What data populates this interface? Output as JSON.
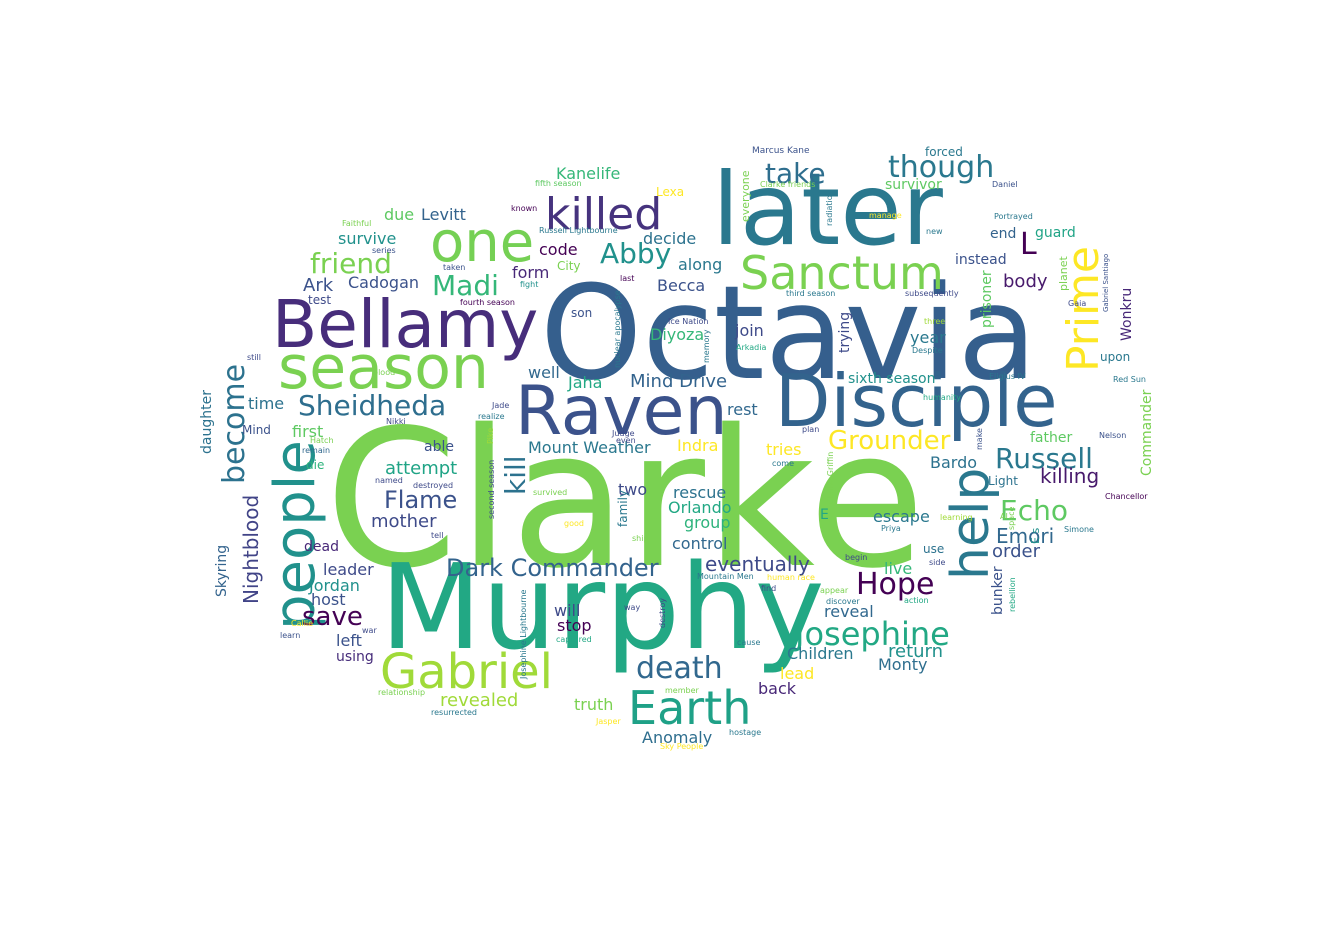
{
  "words": [
    {
      "text": "Clarke",
      "color": "#7ad151",
      "rot": 0
    },
    {
      "text": "Octavia",
      "color": "#355f8d",
      "rot": 0
    },
    {
      "text": "Murphy",
      "color": "#22a884",
      "rot": 0
    },
    {
      "text": "later",
      "color": "#2a788e",
      "rot": 0
    },
    {
      "text": "Disciple",
      "color": "#33638d",
      "rot": 0
    },
    {
      "text": "Raven",
      "color": "#3b528b",
      "rot": 0
    },
    {
      "text": "Bellamy",
      "color": "#472d7b",
      "rot": 0
    },
    {
      "text": "season",
      "color": "#7ad151",
      "rot": 0
    },
    {
      "text": "one",
      "color": "#75d054",
      "rot": 0
    },
    {
      "text": "people",
      "color": "#21918c",
      "rot": -90
    },
    {
      "text": "help",
      "color": "#2a788e",
      "rot": -90
    },
    {
      "text": "Sanctum",
      "color": "#7ad151",
      "rot": 0
    },
    {
      "text": "Gabriel",
      "color": "#a0da39",
      "rot": 0
    },
    {
      "text": "Earth",
      "color": "#1fa187",
      "rot": 0
    },
    {
      "text": "killed",
      "color": "#46337e",
      "rot": 0
    },
    {
      "text": "Prime",
      "color": "#fde725",
      "rot": -90
    },
    {
      "text": "Josephine",
      "color": "#22a884",
      "rot": 0
    },
    {
      "text": "Sheidheda",
      "color": "#2e6e8e",
      "rot": 0
    },
    {
      "text": "Russell",
      "color": "#2a788e",
      "rot": 0
    },
    {
      "text": "Grounder",
      "color": "#fde725",
      "rot": 0
    },
    {
      "text": "death",
      "color": "#31688e",
      "rot": 0
    },
    {
      "text": "Hope",
      "color": "#440154",
      "rot": 0
    },
    {
      "text": "Echo",
      "color": "#5ec962",
      "rot": 0
    },
    {
      "text": "kill",
      "color": "#2c728e",
      "rot": -90
    },
    {
      "text": "Abby",
      "color": "#21918c",
      "rot": 0
    },
    {
      "text": "Madi",
      "color": "#35b779",
      "rot": 0
    },
    {
      "text": "friend",
      "color": "#7ad151",
      "rot": 0
    },
    {
      "text": "though",
      "color": "#2a788e",
      "rot": 0
    },
    {
      "text": "take",
      "color": "#2e6e8e",
      "rot": 0
    },
    {
      "text": "become",
      "color": "#2c728e",
      "rot": -90
    },
    {
      "text": "Dark Commander",
      "color": "#33638d",
      "rot": 0
    },
    {
      "text": "Flame",
      "color": "#3b528b",
      "rot": 0
    },
    {
      "text": "save",
      "color": "#440154",
      "rot": 0
    },
    {
      "text": "L",
      "color": "#440154",
      "rot": 0
    },
    {
      "text": "Nightblood",
      "color": "#414487",
      "rot": -90
    },
    {
      "text": "eventually",
      "color": "#3e4a89",
      "rot": 0
    },
    {
      "text": "killing",
      "color": "#481a6c",
      "rot": 0
    },
    {
      "text": "Emori",
      "color": "#31688e",
      "rot": 0
    },
    {
      "text": "revealed",
      "color": "#a0da39",
      "rot": 0
    },
    {
      "text": "return",
      "color": "#21918c",
      "rot": 0
    },
    {
      "text": "Children",
      "color": "#2a788e",
      "rot": 0
    },
    {
      "text": "Mind Drive",
      "color": "#33638d",
      "rot": 0
    },
    {
      "text": "Mount Weather",
      "color": "#2a788e",
      "rot": 0
    },
    {
      "text": "Anomaly",
      "color": "#2e6e8e",
      "rot": 0
    },
    {
      "text": "body",
      "color": "#481a6c",
      "rot": 0
    },
    {
      "text": "attempt",
      "color": "#20a486",
      "rot": 0
    },
    {
      "text": "Diyoza",
      "color": "#35b779",
      "rot": 0
    },
    {
      "text": "Becca",
      "color": "#3b528b",
      "rot": 0
    },
    {
      "text": "Ark",
      "color": "#3b528b",
      "rot": 0
    },
    {
      "text": "mother",
      "color": "#3e4a89",
      "rot": 0
    },
    {
      "text": "order",
      "color": "#3b528b",
      "rot": 0
    },
    {
      "text": "Jordan",
      "color": "#21918c",
      "rot": 0
    },
    {
      "text": "group",
      "color": "#2eb37c",
      "rot": 0
    },
    {
      "text": "rescue",
      "color": "#2c728e",
      "rot": 0
    },
    {
      "text": "Indra",
      "color": "#fde725",
      "rot": 0
    },
    {
      "text": "Bardo",
      "color": "#2c728e",
      "rot": 0
    },
    {
      "text": "Kanelife",
      "color": "#35b779",
      "rot": 0
    },
    {
      "text": "Levitt",
      "color": "#33638d",
      "rot": 0
    },
    {
      "text": "survive",
      "color": "#21918c",
      "rot": 0
    },
    {
      "text": "due",
      "color": "#5ec962",
      "rot": 0
    },
    {
      "text": "decide",
      "color": "#2c728e",
      "rot": 0
    },
    {
      "text": "along",
      "color": "#2a788e",
      "rot": 0
    },
    {
      "text": "form",
      "color": "#482878",
      "rot": 0
    },
    {
      "text": "code",
      "color": "#440154",
      "rot": 0
    },
    {
      "text": "Cadogan",
      "color": "#3b528b",
      "rot": 0
    },
    {
      "text": "Jaha",
      "color": "#22a884",
      "rot": 0
    },
    {
      "text": "well",
      "color": "#31688e",
      "rot": 0
    },
    {
      "text": "first",
      "color": "#5ec962",
      "rot": 0
    },
    {
      "text": "time",
      "color": "#2c728e",
      "rot": 0
    },
    {
      "text": "rest",
      "color": "#31688e",
      "rot": 0
    },
    {
      "text": "two",
      "color": "#3e4a89",
      "rot": 0
    },
    {
      "text": "Orlando",
      "color": "#22a884",
      "rot": 0
    },
    {
      "text": "control",
      "color": "#31688e",
      "rot": 0
    },
    {
      "text": "leader",
      "color": "#3e4a89",
      "rot": 0
    },
    {
      "text": "host",
      "color": "#3b528b",
      "rot": 0
    },
    {
      "text": "dead",
      "color": "#482878",
      "rot": 0
    },
    {
      "text": "left",
      "color": "#3b528b",
      "rot": 0
    },
    {
      "text": "using",
      "color": "#472d7b",
      "rot": 0
    },
    {
      "text": "stop",
      "color": "#440154",
      "rot": 0
    },
    {
      "text": "will",
      "color": "#3e4a89",
      "rot": 0
    },
    {
      "text": "back",
      "color": "#482878",
      "rot": 0
    },
    {
      "text": "lead",
      "color": "#fde725",
      "rot": 0
    },
    {
      "text": "truth",
      "color": "#7ad151",
      "rot": 0
    },
    {
      "text": "Monty",
      "color": "#2e6e8e",
      "rot": 0
    },
    {
      "text": "reveal",
      "color": "#31688e",
      "rot": 0
    },
    {
      "text": "live",
      "color": "#35b779",
      "rot": 0
    },
    {
      "text": "escape",
      "color": "#2a788e",
      "rot": 0
    },
    {
      "text": "join",
      "color": "#3e4a89",
      "rot": 0
    },
    {
      "text": "year",
      "color": "#2a788e",
      "rot": 0
    },
    {
      "text": "sixth season",
      "color": "#21918c",
      "rot": 0
    },
    {
      "text": "tries",
      "color": "#fde725",
      "rot": 0
    },
    {
      "text": "able",
      "color": "#3b528b",
      "rot": 0
    },
    {
      "text": "father",
      "color": "#5ec962",
      "rot": 0
    },
    {
      "text": "Wonkru",
      "color": "#482878",
      "rot": -90
    },
    {
      "text": "Commander",
      "color": "#7ad151",
      "rot": -90
    },
    {
      "text": "prisoner",
      "color": "#5ec962",
      "rot": -90
    },
    {
      "text": "trying",
      "color": "#3e4a89",
      "rot": -90
    },
    {
      "text": "bunker",
      "color": "#3b528b",
      "rot": -90
    },
    {
      "text": "Skyring",
      "color": "#33638d",
      "rot": -90
    },
    {
      "text": "daughter",
      "color": "#2c728e",
      "rot": -90
    },
    {
      "text": "instead",
      "color": "#3b528b",
      "rot": 0
    },
    {
      "text": "end",
      "color": "#33638d",
      "rot": 0
    },
    {
      "text": "guard",
      "color": "#20a486",
      "rot": 0
    },
    {
      "text": "forced",
      "color": "#2a788e",
      "rot": 0
    },
    {
      "text": "survivor",
      "color": "#5ec962",
      "rot": 0
    },
    {
      "text": "upon",
      "color": "#2a788e",
      "rot": 0
    },
    {
      "text": "son",
      "color": "#3b528b",
      "rot": 0
    },
    {
      "text": "Mind",
      "color": "#3b528b",
      "rot": 0
    },
    {
      "text": "Light",
      "color": "#2c728e",
      "rot": 0
    },
    {
      "text": "E s",
      "color": "#21918c",
      "rot": -90
    },
    {
      "text": "die",
      "color": "#2eb37c",
      "rot": 0
    },
    {
      "text": "use",
      "color": "#2c728e",
      "rot": 0
    },
    {
      "text": "family",
      "color": "#2a788e",
      "rot": -90
    },
    {
      "text": "test",
      "color": "#3e4a89",
      "rot": 0
    },
    {
      "text": "City",
      "color": "#7ad151",
      "rot": 0
    },
    {
      "text": "Lexa",
      "color": "#fde725",
      "rot": 0
    },
    {
      "text": "everyone",
      "color": "#7ad151",
      "rot": -90
    },
    {
      "text": "E",
      "color": "#22a884",
      "rot": 0
    },
    {
      "text": "planet",
      "color": "#7ad151",
      "rot": -90
    },
    {
      "text": "Marcus Kane",
      "color": "#3b528b",
      "rot": 0
    },
    {
      "text": "fifth season",
      "color": "#5ec962",
      "rot": 0
    },
    {
      "text": "Clarke friends",
      "color": "#7ad151",
      "rot": 0
    },
    {
      "text": "Daniel",
      "color": "#3b528b",
      "rot": 0
    },
    {
      "text": "known",
      "color": "#440154",
      "rot": 0
    },
    {
      "text": "Russell Lightbourne",
      "color": "#2a788e",
      "rot": 0
    },
    {
      "text": "radiation",
      "color": "#2a788e",
      "rot": -90
    },
    {
      "text": "manage",
      "color": "#fde725",
      "rot": 0
    },
    {
      "text": "Portrayed",
      "color": "#2a788e",
      "rot": 0
    },
    {
      "text": "Faithful",
      "color": "#7ad151",
      "rot": 0
    },
    {
      "text": "new",
      "color": "#2a788e",
      "rot": 0
    },
    {
      "text": "series",
      "color": "#3b528b",
      "rot": 0
    },
    {
      "text": "taken",
      "color": "#3b528b",
      "rot": 0
    },
    {
      "text": "last",
      "color": "#440154",
      "rot": 0
    },
    {
      "text": "fourth season",
      "color": "#440154",
      "rot": 0
    },
    {
      "text": "fight",
      "color": "#21918c",
      "rot": 0
    },
    {
      "text": "third season",
      "color": "#2a788e",
      "rot": 0
    },
    {
      "text": "subsequently",
      "color": "#3e4a89",
      "rot": 0
    },
    {
      "text": "Gaia",
      "color": "#3e4a89",
      "rot": 0
    },
    {
      "text": "Gabriel Santiago",
      "color": "#3b528b",
      "rot": -90
    },
    {
      "text": "blood",
      "color": "#7ad151",
      "rot": 0
    },
    {
      "text": "Ice Nation",
      "color": "#3e4a89",
      "rot": 0
    },
    {
      "text": "nuclear apocalypse",
      "color": "#2a788e",
      "rot": -90
    },
    {
      "text": "memory",
      "color": "#2a788e",
      "rot": -90
    },
    {
      "text": "three",
      "color": "#a0da39",
      "rot": 0
    },
    {
      "text": "Arkadia",
      "color": "#22a884",
      "rot": 0
    },
    {
      "text": "Despite",
      "color": "#2a788e",
      "rot": 0
    },
    {
      "text": "Eligius IV",
      "color": "#2a788e",
      "rot": 0
    },
    {
      "text": "Red Sun",
      "color": "#2a788e",
      "rot": 0
    },
    {
      "text": "still",
      "color": "#3e4a89",
      "rot": 0
    },
    {
      "text": "Jade",
      "color": "#3e4a89",
      "rot": 0
    },
    {
      "text": "realize",
      "color": "#2a788e",
      "rot": 0
    },
    {
      "text": "Pike",
      "color": "#a0da39",
      "rot": -90
    },
    {
      "text": "Nikki",
      "color": "#3e4a89",
      "rot": 0
    },
    {
      "text": "humanity",
      "color": "#22a884",
      "rot": 0
    },
    {
      "text": "plan",
      "color": "#3e4a89",
      "rot": 0
    },
    {
      "text": "Hatch",
      "color": "#7ad151",
      "rot": 0
    },
    {
      "text": "remain",
      "color": "#31688e",
      "rot": 0
    },
    {
      "text": "make",
      "color": "#3b528b",
      "rot": -90
    },
    {
      "text": "Nelson",
      "color": "#3b528b",
      "rot": 0
    },
    {
      "text": "Judge",
      "color": "#3e4a89",
      "rot": 0
    },
    {
      "text": "even",
      "color": "#3e4a89",
      "rot": 0
    },
    {
      "text": "come",
      "color": "#2a788e",
      "rot": 0
    },
    {
      "text": "Clarke Griffin",
      "color": "#7ad151",
      "rot": -90
    },
    {
      "text": "named",
      "color": "#3e4a89",
      "rot": 0
    },
    {
      "text": "destroyed",
      "color": "#3e4a89",
      "rot": 0
    },
    {
      "text": "second season",
      "color": "#3e4a89",
      "rot": -90
    },
    {
      "text": "survived",
      "color": "#7ad151",
      "rot": 0
    },
    {
      "text": "Chancellor",
      "color": "#440154",
      "rot": 0
    },
    {
      "text": "AI",
      "color": "#7ad151",
      "rot": 0
    },
    {
      "text": "space",
      "color": "#7ad151",
      "rot": -90
    },
    {
      "text": "learning",
      "color": "#a0da39",
      "rot": 0
    },
    {
      "text": "Simone",
      "color": "#2a788e",
      "rot": 0
    },
    {
      "text": "Priya",
      "color": "#2a788e",
      "rot": 0
    },
    {
      "text": "good",
      "color": "#fde725",
      "rot": 0
    },
    {
      "text": "tell",
      "color": "#3e4a89",
      "rot": 0
    },
    {
      "text": "ship",
      "color": "#7ad151",
      "rot": 0
    },
    {
      "text": "Josephine Lightbourne",
      "color": "#2a788e",
      "rot": -90
    },
    {
      "text": "begin",
      "color": "#3e4a89",
      "rot": 0
    },
    {
      "text": "side",
      "color": "#3e4a89",
      "rot": 0
    },
    {
      "text": "Mountain Men",
      "color": "#2a788e",
      "rot": 0
    },
    {
      "text": "human race",
      "color": "#fde725",
      "rot": 0
    },
    {
      "text": "find",
      "color": "#3e4a89",
      "rot": 0
    },
    {
      "text": "appear",
      "color": "#7ad151",
      "rot": 0
    },
    {
      "text": "discover",
      "color": "#2a788e",
      "rot": 0
    },
    {
      "text": "action",
      "color": "#22a884",
      "rot": 0
    },
    {
      "text": "rebellion",
      "color": "#22a884",
      "rot": -90
    },
    {
      "text": "war",
      "color": "#3e4a89",
      "rot": 0
    },
    {
      "text": "Callie",
      "color": "#fde725",
      "rot": 0
    },
    {
      "text": "learn",
      "color": "#3b528b",
      "rot": 0
    },
    {
      "text": "way",
      "color": "#3e4a89",
      "rot": 0
    },
    {
      "text": "destroy",
      "color": "#3e4a89",
      "rot": -90
    },
    {
      "text": "captured",
      "color": "#22a884",
      "rot": 0
    },
    {
      "text": "cause",
      "color": "#2a788e",
      "rot": 0
    },
    {
      "text": "relationship",
      "color": "#7ad151",
      "rot": 0
    },
    {
      "text": "member",
      "color": "#7ad151",
      "rot": 0
    },
    {
      "text": "resurrected",
      "color": "#2a788e",
      "rot": 0
    },
    {
      "text": "Jasper",
      "color": "#fde725",
      "rot": 0
    },
    {
      "text": "hostage",
      "color": "#2a788e",
      "rot": 0
    },
    {
      "text": "Sky People",
      "color": "#fde725",
      "rot": 0
    }
  ]
}
